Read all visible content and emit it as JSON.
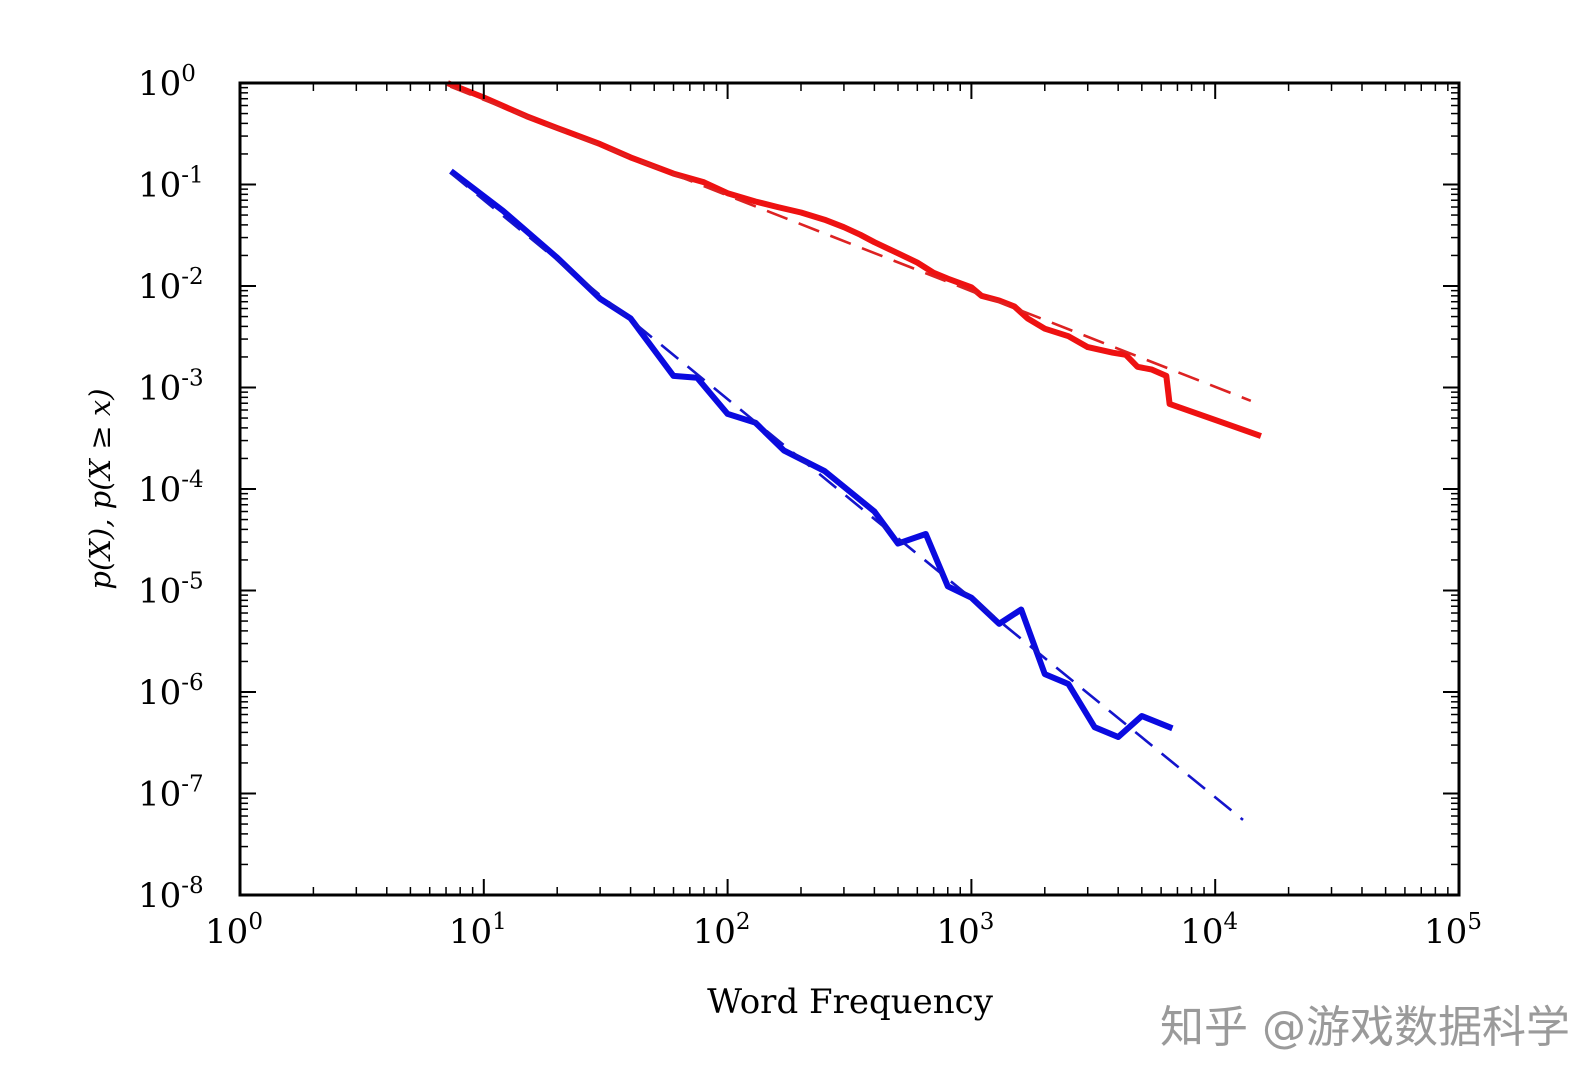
{
  "chart_data": {
    "type": "line",
    "xscale": "log",
    "yscale": "log",
    "xlim": [
      1,
      100000
    ],
    "ylim": [
      1e-08,
      1
    ],
    "xlabel": "Word Frequency",
    "ylabel": "p(X),  p(X ≥ x)",
    "x_ticks": [
      {
        "base": "10",
        "exp": "0"
      },
      {
        "base": "10",
        "exp": "1"
      },
      {
        "base": "10",
        "exp": "2"
      },
      {
        "base": "10",
        "exp": "3"
      },
      {
        "base": "10",
        "exp": "4"
      },
      {
        "base": "10",
        "exp": "5"
      }
    ],
    "y_ticks": [
      {
        "base": "10",
        "exp": "0"
      },
      {
        "base": "10",
        "exp": "-1"
      },
      {
        "base": "10",
        "exp": "-2"
      },
      {
        "base": "10",
        "exp": "-3"
      },
      {
        "base": "10",
        "exp": "-4"
      },
      {
        "base": "10",
        "exp": "-5"
      },
      {
        "base": "10",
        "exp": "-6"
      },
      {
        "base": "10",
        "exp": "-7"
      },
      {
        "base": "10",
        "exp": "-8"
      }
    ],
    "grid": false,
    "legend": "none",
    "series": [
      {
        "color": "#ee1111",
        "style": "solid",
        "points": [
          [
            7.3,
            0.97
          ],
          [
            10,
            0.72
          ],
          [
            15,
            0.47
          ],
          [
            20,
            0.36
          ],
          [
            30,
            0.25
          ],
          [
            40,
            0.185
          ],
          [
            60,
            0.128
          ],
          [
            80,
            0.105
          ],
          [
            100,
            0.082
          ],
          [
            130,
            0.068
          ],
          [
            160,
            0.06
          ],
          [
            200,
            0.053
          ],
          [
            250,
            0.045
          ],
          [
            300,
            0.038
          ],
          [
            350,
            0.032
          ],
          [
            400,
            0.027
          ],
          [
            500,
            0.021
          ],
          [
            600,
            0.017
          ],
          [
            700,
            0.0135
          ],
          [
            800,
            0.0118
          ],
          [
            1000,
            0.0097
          ],
          [
            1100,
            0.008
          ],
          [
            1300,
            0.0072
          ],
          [
            1500,
            0.0063
          ],
          [
            1700,
            0.0048
          ],
          [
            2000,
            0.0038
          ],
          [
            2500,
            0.0032
          ],
          [
            3000,
            0.0025
          ],
          [
            3800,
            0.0022
          ],
          [
            4300,
            0.0021
          ],
          [
            4800,
            0.0016
          ],
          [
            5500,
            0.0015
          ],
          [
            6300,
            0.0013
          ],
          [
            6500,
            0.00069
          ],
          [
            10000,
            0.00048
          ],
          [
            15000,
            0.00034
          ]
        ]
      },
      {
        "color": "#dd2222",
        "style": "dashed",
        "points": [
          [
            7.3,
            0.92
          ],
          [
            14000,
            0.00074
          ]
        ]
      },
      {
        "color": "#0a0ae0",
        "style": "solid",
        "points": [
          [
            7.5,
            0.13
          ],
          [
            12,
            0.055
          ],
          [
            20,
            0.019
          ],
          [
            30,
            0.0075
          ],
          [
            40,
            0.0048
          ],
          [
            60,
            0.0013
          ],
          [
            75,
            0.00125
          ],
          [
            100,
            0.00055
          ],
          [
            130,
            0.00045
          ],
          [
            170,
            0.00024
          ],
          [
            250,
            0.00015
          ],
          [
            400,
            6e-05
          ],
          [
            500,
            2.9e-05
          ],
          [
            650,
            3.6e-05
          ],
          [
            800,
            1.1e-05
          ],
          [
            1000,
            8.5e-06
          ],
          [
            1300,
            4.7e-06
          ],
          [
            1600,
            6.5e-06
          ],
          [
            2000,
            1.5e-06
          ],
          [
            2500,
            1.2e-06
          ],
          [
            3200,
            4.5e-07
          ],
          [
            4000,
            3.6e-07
          ],
          [
            5000,
            5.8e-07
          ],
          [
            6500,
            4.5e-07
          ]
        ]
      },
      {
        "color": "#1414cc",
        "style": "dashed",
        "points": [
          [
            7.3,
            0.13
          ],
          [
            13000,
            5.5e-08
          ]
        ]
      }
    ]
  },
  "watermark": {
    "text": "知乎 @游戏数据科学",
    "color": "#9a9a9a"
  }
}
